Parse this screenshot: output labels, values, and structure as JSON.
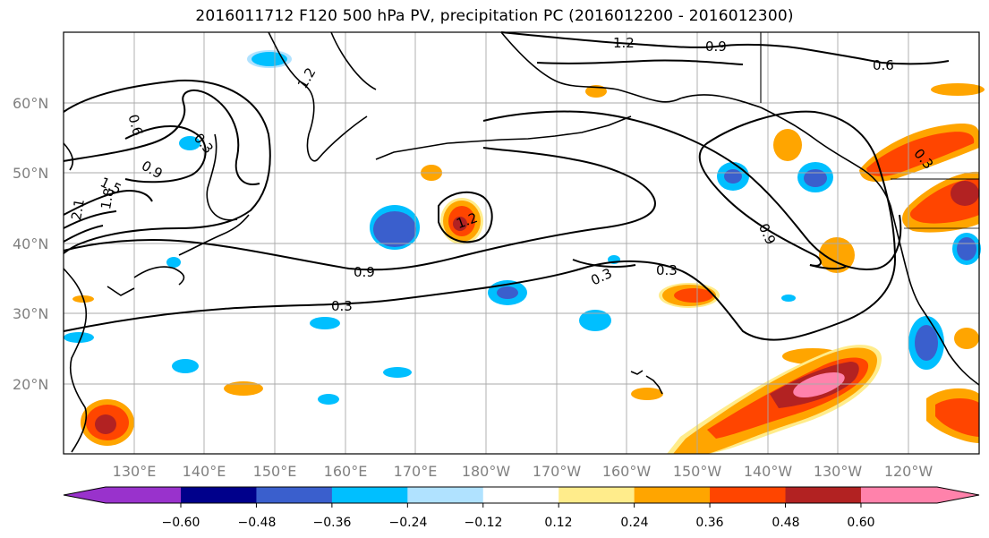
{
  "title": "2016011712 F120 500 hPa PV, precipitation PC (2016012200 - 2016012300)",
  "map": {
    "projection": "PlateCarree",
    "grid": true,
    "lat_labels": [
      "60°N",
      "50°N",
      "40°N",
      "30°N",
      "20°N"
    ],
    "lon_labels": [
      "130°E",
      "140°E",
      "150°E",
      "160°E",
      "170°E",
      "180°W",
      "170°W",
      "160°W",
      "150°W",
      "140°W",
      "130°W",
      "120°W"
    ]
  },
  "contour_labels": [
    "1.2",
    "0.9",
    "0.6",
    "1.2",
    "0.6",
    "0.3",
    "0.9",
    "1.5",
    "1.8",
    "2.1",
    "1.2",
    "0.9",
    "0.3",
    "0.3",
    "0.3",
    "0.9",
    "0.3"
  ],
  "colorbar": {
    "ticks": [
      "−0.60",
      "−0.48",
      "−0.36",
      "−0.24",
      "−0.12",
      "0.12",
      "0.24",
      "0.36",
      "0.48",
      "0.60"
    ],
    "colors": [
      "#9932cc",
      "#00008b",
      "#3a5fcd",
      "#00bfff",
      "#b0e2ff",
      "#ffffff",
      "#ffec8b",
      "#ffa500",
      "#ff4500",
      "#b22222",
      "#ff82ab"
    ]
  },
  "legend_colors": {
    "neg_strong": "#3a5fcd",
    "neg_mid": "#00bfff",
    "neg_weak": "#b0e2ff",
    "pos_weak": "#ffec8b",
    "pos_mid": "#ffa500",
    "pos_strong": "#ff4500",
    "pos_vstrong": "#b22222",
    "pos_max": "#ff82ab"
  }
}
